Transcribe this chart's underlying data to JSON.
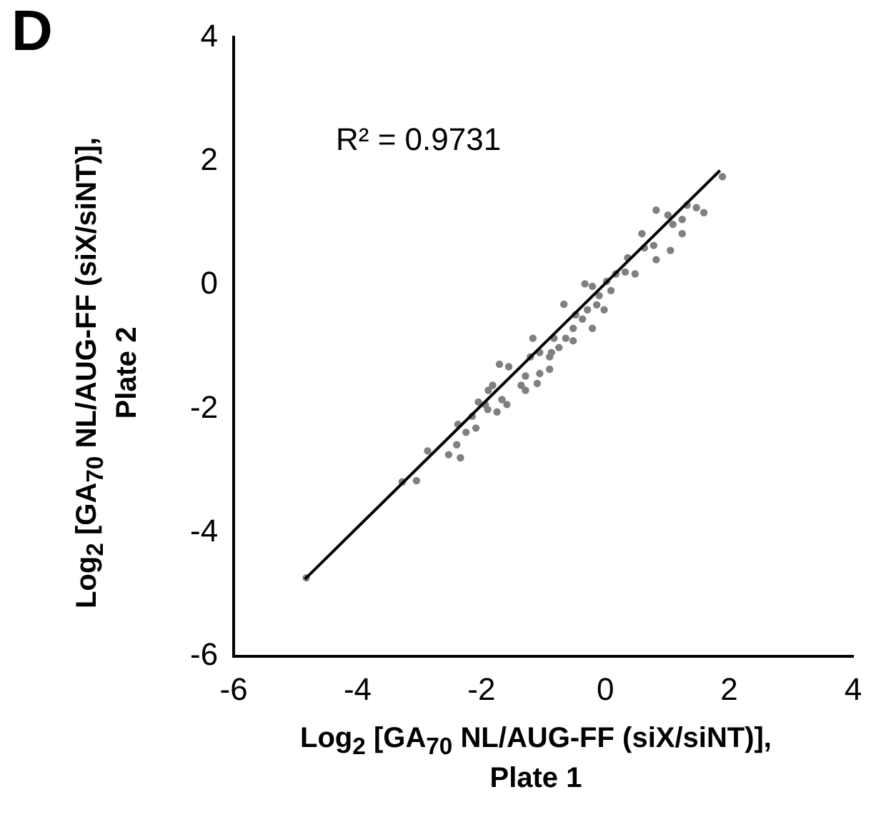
{
  "chart_data": {
    "type": "scatter",
    "title": "D",
    "xlabel": "Log$_{2}$ [GA$_{70}$ NL/AUG-FF (siX/siNT)],\nPlate 1",
    "ylabel": "Log$_{2}$ [GA$_{70}$ NL/AUG-FF (siX/siNT)],\nPlate 2",
    "annotations": [
      "R² = 0.9731"
    ],
    "xlim": [
      -6,
      4
    ],
    "ylim": [
      -6,
      4
    ],
    "xticks": [
      -6,
      -4,
      -2,
      0,
      2,
      4
    ],
    "yticks": [
      -6,
      -4,
      -2,
      0,
      2,
      4
    ],
    "grid": false,
    "marker": "circle",
    "series": [
      {
        "color": "#808080",
        "x": [
          -4.83,
          -3.28,
          -3.05,
          -2.87,
          -2.53,
          -2.34,
          -2.4,
          -2.38,
          -2.25,
          -2.09,
          -2.15,
          -2.05,
          -1.94,
          -1.75,
          -1.89,
          -1.71,
          -1.56,
          -1.67,
          -1.59,
          -1.82,
          -1.36,
          -1.29,
          -1.21,
          -1.1,
          -1.06,
          -0.9,
          -1.17,
          -0.87,
          -0.67,
          -0.75,
          -0.64,
          -0.52,
          -0.48,
          -0.37,
          -0.21,
          -0.29,
          -0.14,
          -0.1,
          -0.02,
          -0.21,
          0.02,
          0.09,
          0.17,
          0.32,
          0.48,
          0.59,
          0.63,
          0.78,
          0.82,
          0.82,
          1.01,
          1.05,
          1.24,
          1.24,
          1.32,
          1.47,
          1.59,
          1.89,
          1.09,
          0.36,
          -0.33,
          -0.83,
          -0.52,
          -0.9,
          -1.29,
          -1.9,
          -1.06
        ],
        "values": [
          -4.73,
          -3.18,
          -3.16,
          -2.68,
          -2.74,
          -2.79,
          -2.58,
          -2.25,
          -2.38,
          -2.31,
          -2.12,
          -1.89,
          -1.93,
          -2.05,
          -1.7,
          -1.28,
          -1.32,
          -1.85,
          -1.93,
          -1.62,
          -1.62,
          -1.47,
          -1.16,
          -1.59,
          -1.43,
          -1.36,
          -0.86,
          -1.09,
          -0.31,
          -1.01,
          -0.86,
          -0.7,
          -0.48,
          -0.55,
          -0.7,
          -0.4,
          -0.32,
          -0.17,
          -0.4,
          -0.02,
          0.06,
          -0.09,
          0.18,
          0.21,
          0.18,
          0.83,
          0.6,
          0.64,
          0.41,
          1.21,
          1.13,
          0.56,
          1.06,
          0.83,
          1.29,
          1.25,
          1.17,
          1.75,
          0.98,
          0.44,
          0.02,
          -0.86,
          -0.9,
          -1.16,
          -1.7,
          -2.01,
          -1.09
        ]
      },
      {
        "type": "line",
        "color": "#000000",
        "marker": "none",
        "x": [
          -4.85,
          1.85
        ],
        "values": [
          -4.75,
          1.85
        ]
      }
    ]
  }
}
